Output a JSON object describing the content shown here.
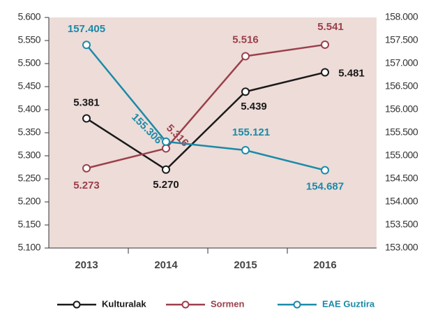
{
  "chart_data": {
    "type": "line",
    "categories": [
      "2013",
      "2014",
      "2015",
      "2016"
    ],
    "series": [
      {
        "name": "Kulturalak",
        "color": "#1a1a1a",
        "values": [
          5381,
          5270,
          5439,
          5481
        ],
        "value_labels": [
          "5.381",
          "5.270",
          "5.439",
          "5.481"
        ]
      },
      {
        "name": "Sormen",
        "color": "#9b3f4b",
        "values": [
          5273,
          5316,
          5516,
          5541
        ],
        "value_labels": [
          "5.273",
          "5.316",
          "5.516",
          "5.541"
        ]
      },
      {
        "name": "EAE Guztira",
        "color": "#1b8aa8",
        "axis": "y2",
        "values": [
          157405,
          155306,
          155121,
          154687
        ],
        "value_labels": [
          "157.405",
          "155.306",
          "155.121",
          "154.687"
        ]
      }
    ],
    "ylim": [
      5100,
      5600
    ],
    "yticks": [
      {
        "value": 5100,
        "label": "5.100"
      },
      {
        "value": 5150,
        "label": "5.150"
      },
      {
        "value": 5200,
        "label": "5.200"
      },
      {
        "value": 5250,
        "label": "5.250"
      },
      {
        "value": 5300,
        "label": "5.300"
      },
      {
        "value": 5350,
        "label": "5.350"
      },
      {
        "value": 5400,
        "label": "5.400"
      },
      {
        "value": 5450,
        "label": "5.450"
      },
      {
        "value": 5500,
        "label": "5.500"
      },
      {
        "value": 5550,
        "label": "5.550"
      },
      {
        "value": 5600,
        "label": "5.600"
      }
    ],
    "y2lim": [
      153000,
      158000
    ],
    "y2ticks": [
      {
        "value": 153000,
        "label": "153.000"
      },
      {
        "value": 153500,
        "label": "153.500"
      },
      {
        "value": 154000,
        "label": "154.000"
      },
      {
        "value": 154500,
        "label": "154.500"
      },
      {
        "value": 155000,
        "label": "155.000"
      },
      {
        "value": 155500,
        "label": "155.500"
      },
      {
        "value": 156000,
        "label": "156.000"
      },
      {
        "value": 156500,
        "label": "156.500"
      },
      {
        "value": 157000,
        "label": "157.000"
      },
      {
        "value": 157500,
        "label": "157.500"
      },
      {
        "value": 158000,
        "label": "158.000"
      }
    ],
    "legend": "bottom"
  }
}
